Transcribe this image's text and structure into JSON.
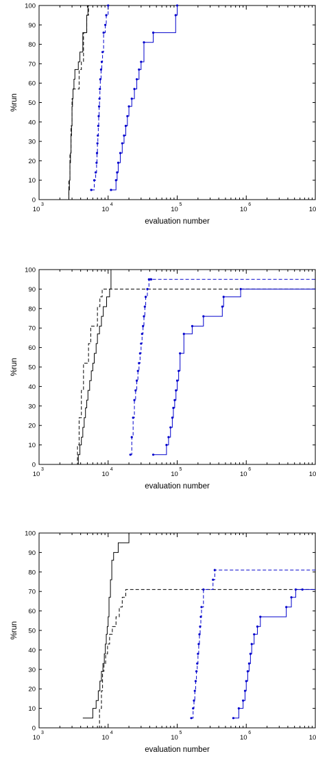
{
  "colors": {
    "black": "#000000",
    "blue": "#0000cc",
    "grid": "#000000"
  },
  "chart_data": [
    {
      "type": "line",
      "xscale": "log",
      "xlim": [
        1000,
        10000000
      ],
      "ylim": [
        0,
        100
      ],
      "xlabel": "evaluation number",
      "ylabel": "%run",
      "xticks": [
        {
          "base": "10",
          "exp": "3"
        },
        {
          "base": "10",
          "exp": "4"
        },
        {
          "base": "10",
          "exp": "5"
        },
        {
          "base": "10",
          "exp": "6"
        },
        {
          "base": "10",
          "exp": "7"
        }
      ],
      "yticks": [
        "0",
        "10",
        "20",
        "30",
        "40",
        "50",
        "60",
        "70",
        "80",
        "90",
        "100"
      ],
      "series": [
        {
          "style": "black-solid",
          "x": [
            2650,
            2700,
            2750,
            2800,
            2850,
            2900,
            2950,
            3000,
            3050,
            3100,
            3200,
            3300,
            3500,
            3700,
            3900,
            4300,
            4900,
            5100,
            7000
          ],
          "y": [
            0,
            5,
            10,
            19,
            24,
            33,
            38,
            48,
            52,
            57,
            62,
            67,
            67,
            71,
            76,
            86,
            95,
            100,
            100
          ]
        },
        {
          "style": "black-dashed",
          "x": [
            2600,
            2700,
            2800,
            2900,
            3000,
            3100,
            3400,
            3800,
            4100,
            4400,
            4900,
            5200,
            6500
          ],
          "y": [
            0,
            10,
            24,
            38,
            52,
            57,
            57,
            67,
            71,
            86,
            95,
            100,
            100
          ]
        },
        {
          "style": "blue-dashed",
          "x": [
            5700,
            6300,
            6600,
            6800,
            6900,
            7000,
            7100,
            7200,
            7300,
            7400,
            7500,
            7600,
            7700,
            7900,
            8100,
            8300,
            8600,
            9100,
            9400,
            10000
          ],
          "y": [
            5,
            10,
            14,
            19,
            24,
            29,
            33,
            38,
            43,
            48,
            52,
            57,
            62,
            67,
            71,
            76,
            86,
            90,
            95,
            100
          ]
        },
        {
          "style": "blue-solid",
          "x": [
            11000,
            13000,
            13500,
            14000,
            15000,
            16000,
            17000,
            18000,
            19000,
            20000,
            22000,
            24000,
            26000,
            28000,
            30000,
            33000,
            45000,
            95000,
            100000
          ],
          "y": [
            5,
            10,
            14,
            19,
            24,
            29,
            33,
            38,
            43,
            48,
            52,
            57,
            62,
            67,
            71,
            81,
            86,
            95,
            100
          ]
        }
      ]
    },
    {
      "type": "line",
      "xscale": "log",
      "xlim": [
        1000,
        10000000
      ],
      "ylim": [
        0,
        100
      ],
      "xlabel": "evaluation number",
      "ylabel": "%run",
      "xticks": [
        {
          "base": "10",
          "exp": "3"
        },
        {
          "base": "10",
          "exp": "4"
        },
        {
          "base": "10",
          "exp": "5"
        },
        {
          "base": "10",
          "exp": "6"
        },
        {
          "base": "10",
          "exp": "7"
        }
      ],
      "yticks": [
        "0",
        "10",
        "20",
        "30",
        "40",
        "50",
        "60",
        "70",
        "80",
        "90",
        "100"
      ],
      "series": [
        {
          "style": "black-solid",
          "x": [
            3500,
            3700,
            3900,
            4100,
            4300,
            4500,
            4700,
            4900,
            5100,
            5400,
            5700,
            6000,
            6300,
            6700,
            7000,
            7500,
            8000,
            8500,
            9500,
            10500,
            11000,
            10000000
          ],
          "y": [
            0,
            5,
            10,
            14,
            19,
            24,
            29,
            33,
            38,
            43,
            48,
            52,
            57,
            62,
            67,
            71,
            76,
            81,
            86,
            90,
            100,
            100
          ]
        },
        {
          "style": "black-dashed",
          "x": [
            3400,
            3600,
            3800,
            4100,
            4400,
            4700,
            5200,
            5600,
            6200,
            7000,
            7600,
            8200,
            8800,
            9300,
            10500,
            10000000
          ],
          "y": [
            0,
            10,
            24,
            38,
            52,
            52,
            62,
            71,
            71,
            81,
            86,
            90,
            90,
            90,
            90,
            90
          ]
        },
        {
          "style": "blue-dashed",
          "x": [
            21000,
            22000,
            23000,
            24000,
            25000,
            26000,
            27000,
            28000,
            29000,
            30000,
            31000,
            32000,
            33000,
            34000,
            35000,
            37000,
            39000,
            41000,
            42000,
            10000000
          ],
          "y": [
            5,
            14,
            24,
            33,
            38,
            43,
            48,
            52,
            57,
            62,
            67,
            71,
            76,
            81,
            86,
            90,
            95,
            95,
            95,
            95
          ]
        },
        {
          "style": "blue-solid",
          "x": [
            45000,
            70000,
            75000,
            80000,
            85000,
            88000,
            92000,
            96000,
            100000,
            105000,
            110000,
            125000,
            165000,
            240000,
            450000,
            470000,
            830000,
            10000000
          ],
          "y": [
            5,
            10,
            14,
            19,
            24,
            29,
            33,
            38,
            43,
            48,
            57,
            67,
            71,
            76,
            81,
            86,
            90,
            90
          ]
        }
      ]
    },
    {
      "type": "line",
      "xscale": "log",
      "xlim": [
        1000,
        10000000
      ],
      "ylim": [
        0,
        100
      ],
      "xlabel": "evaluation number",
      "ylabel": "%run",
      "xticks": [
        {
          "base": "10",
          "exp": "3"
        },
        {
          "base": "10",
          "exp": "4"
        },
        {
          "base": "10",
          "exp": "5"
        },
        {
          "base": "10",
          "exp": "6"
        },
        {
          "base": "10",
          "exp": "7"
        }
      ],
      "yticks": [
        "0",
        "10",
        "20",
        "30",
        "40",
        "50",
        "60",
        "70",
        "80",
        "90",
        "100"
      ],
      "series": [
        {
          "style": "black-solid",
          "x": [
            4300,
            6000,
            6700,
            7200,
            7600,
            8000,
            8400,
            8800,
            9100,
            9400,
            9700,
            10000,
            10300,
            10800,
            11300,
            12000,
            14000,
            20000,
            10000000
          ],
          "y": [
            5,
            10,
            14,
            19,
            24,
            29,
            33,
            38,
            43,
            48,
            52,
            57,
            67,
            76,
            86,
            90,
            95,
            100,
            100
          ]
        },
        {
          "style": "black-dashed",
          "x": [
            7200,
            7500,
            8000,
            8300,
            8700,
            9200,
            9800,
            10500,
            11500,
            13000,
            14500,
            16000,
            18000,
            20000,
            10000000
          ],
          "y": [
            0,
            10,
            19,
            29,
            33,
            38,
            43,
            48,
            52,
            57,
            62,
            67,
            71,
            71,
            71
          ]
        },
        {
          "style": "blue-dashed",
          "x": [
            160000,
            170000,
            175000,
            180000,
            185000,
            190000,
            195000,
            200000,
            205000,
            210000,
            215000,
            220000,
            225000,
            240000,
            330000,
            350000,
            10000000
          ],
          "y": [
            5,
            10,
            14,
            19,
            24,
            29,
            33,
            38,
            43,
            48,
            52,
            57,
            62,
            71,
            76,
            81,
            81
          ]
        },
        {
          "style": "blue-solid",
          "x": [
            650000,
            780000,
            900000,
            960000,
            1000000,
            1050000,
            1100000,
            1150000,
            1200000,
            1300000,
            1450000,
            1600000,
            3800000,
            4500000,
            5200000,
            6500000,
            10000000
          ],
          "y": [
            5,
            10,
            14,
            19,
            24,
            29,
            33,
            38,
            43,
            48,
            52,
            57,
            62,
            67,
            71,
            71,
            71
          ]
        }
      ]
    }
  ]
}
